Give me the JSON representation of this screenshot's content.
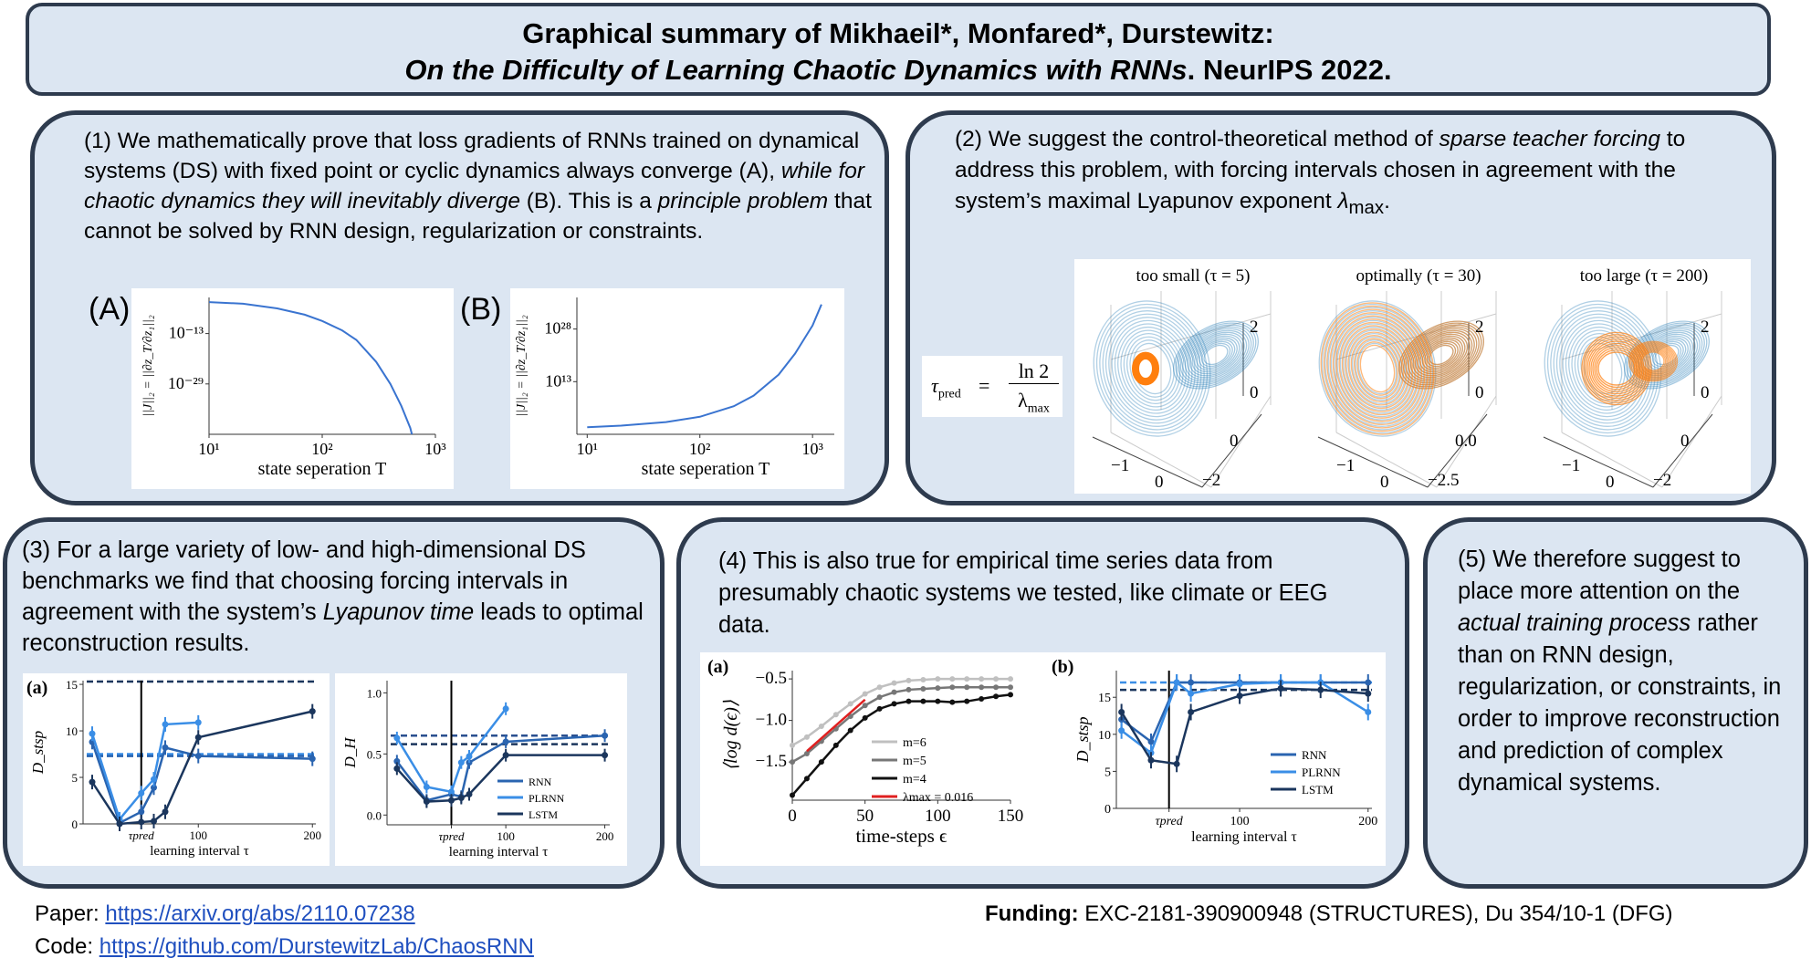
{
  "header": {
    "line1": "Graphical summary of Mikhaeil*, Monfared*, Durstewitz:",
    "line2_italic": "On the Difficulty of Learning Chaotic Dynamics with RNNs",
    "line2_rest": ". NeurIPS 2022."
  },
  "panel1": {
    "t1": "(1) We mathematically prove that loss gradients of RNNs trained on dynamical systems (DS) with fixed point or cyclic dynamics always converge (A), ",
    "t2_italic": "while for chaotic dynamics they will inevitably diverge",
    "t3": " (B). This is a ",
    "t4_italic": "principle problem",
    "t5": " that cannot be solved by RNN design, regularization or constraints.",
    "label_a": "(A)",
    "label_b": "(B)"
  },
  "panel2": {
    "t1": "(2) We suggest the control-theoretical method of ",
    "t2_italic": "sparse teacher forcing",
    "t3": " to address this problem, with forcing intervals chosen in agreement with the system’s maximal Lyapunov exponent ",
    "t4_italic": "λ",
    "t4_sub": "max",
    "t5": ".",
    "formula": {
      "lhs": "τ",
      "lhs_sub": "pred",
      "eq": "=",
      "num": "ln 2",
      "den": "λ",
      "den_sub": "max"
    },
    "lorenz": [
      {
        "title": "too small (τ = 5)",
        "z_ticks": [
          "2",
          "0"
        ],
        "x_ticks": [
          "−1",
          "0"
        ],
        "y_ticks": [
          "0",
          "−2"
        ]
      },
      {
        "title": "optimally (τ = 30)",
        "z_ticks": [
          "2",
          "0"
        ],
        "x_ticks": [
          "−1",
          "0"
        ],
        "y_ticks": [
          "0.0",
          "−2.5"
        ]
      },
      {
        "title": "too large (τ = 200)",
        "z_ticks": [
          "2",
          "0"
        ],
        "x_ticks": [
          "−1",
          "0"
        ],
        "y_ticks": [
          "0",
          "−2"
        ]
      }
    ],
    "colors": {
      "ground_truth": "#1f77b4",
      "generated": "#ff7f0e"
    }
  },
  "panel3": {
    "t1": "(3) For a large variety of low- and high-dimensional DS benchmarks we find that choosing forcing intervals in agreement with the system’s ",
    "t2_italic": "Lyapunov time",
    "t3": " leads to optimal reconstruction results."
  },
  "panel4": {
    "t1": "(4) This is also true for empirical time series data from presumably chaotic systems we tested, like climate or EEG data."
  },
  "panel5": {
    "t1": "(5) We therefore suggest to place more attention on the ",
    "t2_italic": "actual training process",
    "t3": " rather than on RNN design, regularization, or constraints, in order to improve reconstruction and prediction of complex dynamical systems."
  },
  "footer": {
    "paper_label": "Paper: ",
    "paper_link": "https://arxiv.org/abs/2110.07238",
    "code_label": "Code: ",
    "code_link": "https://github.com/DurstewitzLab/ChaosRNN",
    "funding_label": "Funding:",
    "funding_text": " EXC-2181-390900948 (STRUCTURES), Du 354/10-1 (DFG)"
  },
  "chart_data": [
    {
      "id": "A",
      "type": "line",
      "xscale": "log",
      "yscale": "log",
      "xlim": [
        10,
        1000
      ],
      "ylim": [
        1e-45,
        0.03
      ],
      "xlabel": "state seperation T",
      "ylabel": "||J||₂ = ||∂z_T/∂z₁||₂",
      "xticks": [
        {
          "v": 10,
          "label": "10¹"
        },
        {
          "v": 100,
          "label": "10²"
        },
        {
          "v": 1000,
          "label": "10³"
        }
      ],
      "yticks": [
        {
          "v": 1e-13,
          "label": "10⁻¹³"
        },
        {
          "v": 1e-29,
          "label": "10⁻²⁹"
        }
      ],
      "series": [
        {
          "x": [
            10,
            20,
            40,
            70,
            100,
            150,
            200,
            300,
            400,
            500,
            600,
            620
          ],
          "y": [
            0.001,
            0.0003,
            1e-05,
            1e-07,
            1e-09,
            1e-12,
            1e-15,
            1e-22,
            1e-29,
            1e-36,
            1e-43,
            1e-45
          ],
          "color": "#3a74d0"
        }
      ]
    },
    {
      "id": "B",
      "type": "line",
      "xscale": "log",
      "yscale": "log",
      "xlim": [
        8.1,
        1560
      ],
      "ylim": [
        0.01,
        1e+37
      ],
      "xlabel": "state seperation T",
      "ylabel": "||J||₂ = ||∂z_T/∂z₁||₂",
      "xticks": [
        {
          "v": 10,
          "label": "10¹"
        },
        {
          "v": 100,
          "label": "10²"
        },
        {
          "v": 1000,
          "label": "10³"
        }
      ],
      "yticks": [
        {
          "v": 10000000000000.0,
          "label": "10¹³"
        },
        {
          "v": 1e+28,
          "label": "10²⁸"
        }
      ],
      "series": [
        {
          "x": [
            10,
            20,
            50,
            100,
            200,
            300,
            500,
            700,
            1000,
            1200
          ],
          "y": [
            1,
            3,
            30,
            1000,
            1000000.0,
            1000000000.0,
            1000000000000000.0,
            1e+21,
            1e+29,
            1e+35
          ],
          "color": "#3a74d0"
        }
      ]
    },
    {
      "id": "3a",
      "type": "line",
      "panel_label": "(a)",
      "xlim": [
        -1,
        203
      ],
      "ylim": [
        0,
        15.4
      ],
      "xlabel": "learning interval τ",
      "ylabel": "D_stsp",
      "xticks": [
        {
          "v": 50,
          "label": "τpred"
        },
        {
          "v": 100,
          "label": "100"
        },
        {
          "v": 200,
          "label": "200"
        }
      ],
      "yticks": [
        {
          "v": 0,
          "label": "0"
        },
        {
          "v": 5,
          "label": "5"
        },
        {
          "v": 10,
          "label": "10"
        },
        {
          "v": 15,
          "label": "15"
        }
      ],
      "vline": 50,
      "hlines": [
        {
          "y": 15.3,
          "color": "#1b365d"
        },
        {
          "y": 7.5,
          "color": "#3a8ee6"
        },
        {
          "y": 7.3,
          "color": "#2a64b0"
        }
      ],
      "series": [
        {
          "name": "RNN",
          "x": [
            7,
            31,
            50,
            61,
            71,
            100,
            200
          ],
          "y": [
            8.8,
            0.1,
            1.3,
            3.9,
            8.2,
            7.3,
            7.0
          ],
          "color": "#2a64b0"
        },
        {
          "name": "PLRNN",
          "x": [
            7,
            31,
            50,
            61,
            71,
            100
          ],
          "y": [
            9.7,
            0.5,
            3.3,
            4.8,
            10.7,
            10.9
          ],
          "color": "#3a8ee6"
        },
        {
          "name": "LSTM",
          "x": [
            7,
            31,
            50,
            61,
            71,
            100,
            200
          ],
          "y": [
            4.5,
            0.0,
            0.2,
            0.3,
            1.3,
            9.3,
            12.1
          ],
          "color": "#1b365d"
        }
      ]
    },
    {
      "id": "3b",
      "type": "line",
      "xlim": [
        -20,
        205
      ],
      "ylim": [
        -0.08,
        1.1
      ],
      "xlabel": "learning interval τ",
      "ylabel": "D_H",
      "xticks": [
        {
          "v": 45,
          "label": "τpred"
        },
        {
          "v": 100,
          "label": "100"
        },
        {
          "v": 200,
          "label": "200"
        }
      ],
      "yticks": [
        {
          "v": 0,
          "label": "0.0"
        },
        {
          "v": 0.5,
          "label": "0.5"
        },
        {
          "v": 1.0,
          "label": "1.0"
        }
      ],
      "vline": 45,
      "legend": "bottom-right",
      "hlines": [
        {
          "y": 0.65,
          "color": "#2a4f8f"
        },
        {
          "y": 0.58,
          "color": "#1b365d"
        }
      ],
      "series": [
        {
          "name": "RNN",
          "x": [
            -10,
            20,
            45,
            55,
            63,
            100,
            200
          ],
          "y": [
            0.44,
            0.12,
            0.17,
            0.15,
            0.43,
            0.6,
            0.65
          ],
          "color": "#2a64b0"
        },
        {
          "name": "PLRNN",
          "x": [
            -10,
            20,
            45,
            55,
            63,
            100
          ],
          "y": [
            0.63,
            0.23,
            0.19,
            0.43,
            0.48,
            0.87
          ],
          "color": "#3a8ee6"
        },
        {
          "name": "LSTM",
          "x": [
            -10,
            20,
            45,
            55,
            63,
            100,
            200
          ],
          "y": [
            0.38,
            0.11,
            0.12,
            0.14,
            0.17,
            0.49,
            0.49
          ],
          "color": "#1b365d"
        }
      ]
    },
    {
      "id": "4a",
      "type": "line",
      "panel_label": "(a)",
      "xlim": [
        0,
        150
      ],
      "ylim": [
        -1.96,
        -0.4
      ],
      "xlabel": "time-steps ϵ",
      "ylabel": "⟨log d(ϵ)⟩",
      "xticks": [
        {
          "v": 0,
          "label": "0"
        },
        {
          "v": 50,
          "label": "50"
        },
        {
          "v": 100,
          "label": "100"
        },
        {
          "v": 150,
          "label": "150"
        }
      ],
      "yticks": [
        {
          "v": -0.5,
          "label": "−0.5"
        },
        {
          "v": -1.0,
          "label": "−1.0"
        },
        {
          "v": -1.5,
          "label": "−1.5"
        }
      ],
      "legend": "center-right",
      "series": [
        {
          "name": "m=6",
          "x": [
            0,
            10,
            20,
            30,
            40,
            50,
            60,
            70,
            80,
            90,
            100,
            110,
            120,
            130,
            140,
            150
          ],
          "y": [
            -1.3,
            -1.2,
            -1.07,
            -0.93,
            -0.8,
            -0.68,
            -0.6,
            -0.55,
            -0.52,
            -0.51,
            -0.5,
            -0.5,
            -0.5,
            -0.5,
            -0.5,
            -0.5
          ],
          "color": "#c0c0c0"
        },
        {
          "name": "m=5",
          "x": [
            0,
            10,
            20,
            30,
            40,
            50,
            60,
            70,
            80,
            90,
            100,
            110,
            120,
            130,
            140,
            150
          ],
          "y": [
            -1.5,
            -1.4,
            -1.25,
            -1.1,
            -0.95,
            -0.82,
            -0.72,
            -0.66,
            -0.63,
            -0.62,
            -0.61,
            -0.6,
            -0.6,
            -0.6,
            -0.6,
            -0.6
          ],
          "color": "#777777"
        },
        {
          "name": "m=4",
          "x": [
            0,
            10,
            20,
            30,
            40,
            50,
            60,
            70,
            80,
            90,
            100,
            110,
            120,
            130,
            140,
            150
          ],
          "y": [
            -1.9,
            -1.7,
            -1.5,
            -1.3,
            -1.12,
            -0.97,
            -0.86,
            -0.8,
            -0.77,
            -0.77,
            -0.77,
            -0.78,
            -0.77,
            -0.74,
            -0.71,
            -0.69
          ],
          "color": "#111111"
        },
        {
          "name": "λmax = 0.016",
          "x": [
            10,
            50
          ],
          "y": [
            -1.37,
            -0.75
          ],
          "color": "#e02020",
          "nomarker": true
        }
      ]
    },
    {
      "id": "4b",
      "type": "line",
      "panel_label": "(b)",
      "xlim": [
        4,
        203
      ],
      "ylim": [
        0,
        18.6
      ],
      "xlabel": "learning interval τ",
      "ylabel": "D_stsp",
      "xticks": [
        {
          "v": 45,
          "label": "τpred"
        },
        {
          "v": 100,
          "label": "100"
        },
        {
          "v": 200,
          "label": "200"
        }
      ],
      "yticks": [
        {
          "v": 0,
          "label": "0"
        },
        {
          "v": 5,
          "label": "5"
        },
        {
          "v": 10,
          "label": "10"
        },
        {
          "v": 15,
          "label": "15"
        }
      ],
      "vline": 45,
      "legend": "bottom-right",
      "hlines": [
        {
          "y": 17,
          "color": "#3a8ee6"
        },
        {
          "y": 16,
          "color": "#1b365d"
        }
      ],
      "series": [
        {
          "name": "RNN",
          "x": [
            8,
            31,
            51,
            62,
            100,
            132,
            163,
            200
          ],
          "y": [
            12,
            9,
            17,
            17,
            17,
            17,
            17,
            17
          ],
          "color": "#2a64b0"
        },
        {
          "name": "PLRNN",
          "x": [
            8,
            31,
            51,
            62,
            100,
            132,
            163,
            200
          ],
          "y": [
            10.5,
            7.5,
            17,
            15.5,
            16.8,
            17,
            17,
            13
          ],
          "color": "#3a8ee6"
        },
        {
          "name": "LSTM",
          "x": [
            8,
            31,
            51,
            62,
            100,
            132,
            163,
            200
          ],
          "y": [
            13,
            6.5,
            6,
            13,
            15.2,
            16.2,
            16,
            15.5
          ],
          "color": "#1b365d"
        }
      ]
    }
  ]
}
